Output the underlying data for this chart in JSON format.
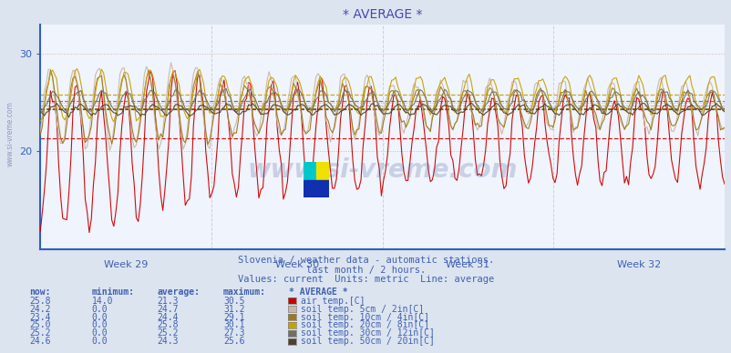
{
  "title": "* AVERAGE *",
  "subtitle1": "Slovenia / weather data - automatic stations.",
  "subtitle2": "last month / 2 hours.",
  "subtitle3": "Values: current  Units: metric  Line: average",
  "x_labels": [
    "Week 29",
    "Week 30",
    "Week 31",
    "Week 32"
  ],
  "y_ticks": [
    20,
    30
  ],
  "y_lim": [
    10,
    33
  ],
  "background_color": "#dce4f0",
  "plot_bg_color": "#f0f4fc",
  "grid_color_h": "#e0a0a0",
  "grid_color_v": "#c8d0e0",
  "title_color": "#4848b0",
  "axis_color": "#3060c0",
  "text_color": "#4060b0",
  "series": [
    {
      "name": "air temp.[C]",
      "color": "#cc0000",
      "avg": 21.3
    },
    {
      "name": "soil temp. 5cm / 2in[C]",
      "color": "#c8b8a8",
      "avg": 24.7
    },
    {
      "name": "soil temp. 10cm / 4in[C]",
      "color": "#a07818",
      "avg": 24.4
    },
    {
      "name": "soil temp. 20cm / 8in[C]",
      "color": "#c8a000",
      "avg": 25.8
    },
    {
      "name": "soil temp. 30cm / 12in[C]",
      "color": "#707060",
      "avg": 25.2
    },
    {
      "name": "soil temp. 50cm / 20in[C]",
      "color": "#504030",
      "avg": 24.3
    }
  ],
  "legend_data": [
    {
      "now": "25.8",
      "min": "14.0",
      "avg": "21.3",
      "max": "30.5",
      "label": "air temp.[C]",
      "color": "#cc0000"
    },
    {
      "now": "24.2",
      "min": "0.0",
      "avg": "24.7",
      "max": "31.2",
      "label": "soil temp. 5cm / 2in[C]",
      "color": "#c8b8a8"
    },
    {
      "now": "23.4",
      "min": "0.0",
      "avg": "24.4",
      "max": "29.1",
      "label": "soil temp. 10cm / 4in[C]",
      "color": "#a07818"
    },
    {
      "now": "25.0",
      "min": "0.0",
      "avg": "25.8",
      "max": "30.1",
      "label": "soil temp. 20cm / 8in[C]",
      "color": "#c8a000"
    },
    {
      "now": "25.2",
      "min": "0.0",
      "avg": "25.2",
      "max": "27.3",
      "label": "soil temp. 30cm / 12in[C]",
      "color": "#707060"
    },
    {
      "now": "24.6",
      "min": "0.0",
      "avg": "24.3",
      "max": "25.6",
      "label": "soil temp. 50cm / 20in[C]",
      "color": "#504030"
    }
  ],
  "watermark": "www.si-vreme.com",
  "n_weeks": 4,
  "n_points": 336
}
